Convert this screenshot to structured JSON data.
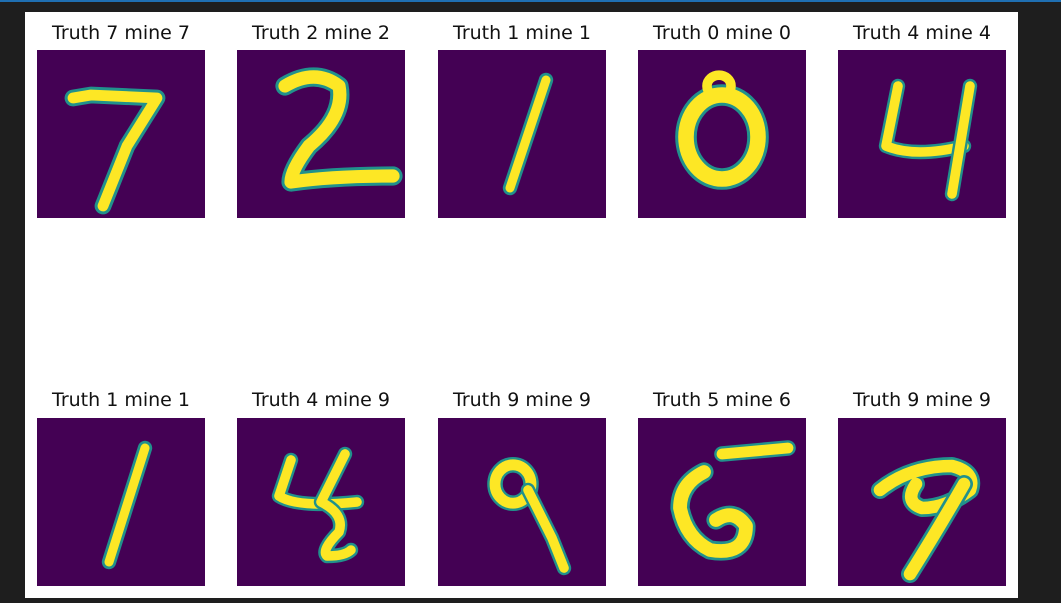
{
  "colors": {
    "background": "#1e1e1e",
    "figure": "#ffffff",
    "image_low": "#440154",
    "image_mid": "#21918c",
    "image_high": "#fde725",
    "accent_line": "#1f6fb2"
  },
  "panels": [
    {
      "title": "Truth 7 mine 7",
      "truth": 7,
      "pred": 7,
      "icon": "digit-7-image"
    },
    {
      "title": "Truth 2 mine 2",
      "truth": 2,
      "pred": 2,
      "icon": "digit-2-image"
    },
    {
      "title": "Truth 1 mine 1",
      "truth": 1,
      "pred": 1,
      "icon": "digit-1-image"
    },
    {
      "title": "Truth 0 mine 0",
      "truth": 0,
      "pred": 0,
      "icon": "digit-0-image"
    },
    {
      "title": "Truth 4 mine 4",
      "truth": 4,
      "pred": 4,
      "icon": "digit-4-image"
    },
    {
      "title": "Truth 1 mine 1",
      "truth": 1,
      "pred": 1,
      "icon": "digit-1-image"
    },
    {
      "title": "Truth 4 mine 9",
      "truth": 4,
      "pred": 9,
      "icon": "digit-4-image"
    },
    {
      "title": "Truth 9 mine 9",
      "truth": 9,
      "pred": 9,
      "icon": "digit-9-image"
    },
    {
      "title": "Truth 5 mine 6",
      "truth": 5,
      "pred": 6,
      "icon": "digit-5-image"
    },
    {
      "title": "Truth 9 mine 9",
      "truth": 9,
      "pred": 9,
      "icon": "digit-9-image"
    }
  ]
}
